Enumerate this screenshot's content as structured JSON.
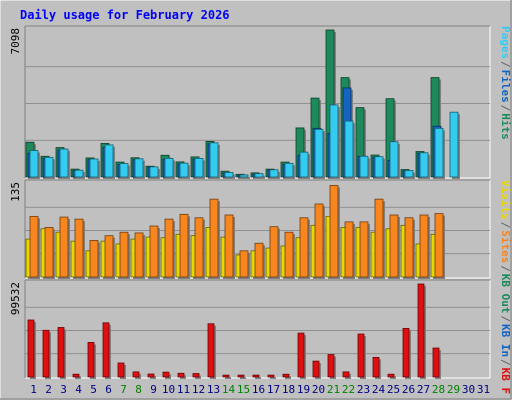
{
  "chart_data": {
    "type": "bar",
    "title": "Daily usage for February 2026",
    "days": [
      "1",
      "2",
      "3",
      "4",
      "5",
      "6",
      "7",
      "8",
      "9",
      "10",
      "11",
      "12",
      "13",
      "14",
      "15",
      "16",
      "17",
      "18",
      "19",
      "20",
      "21",
      "22",
      "23",
      "24",
      "25",
      "26",
      "27",
      "28",
      "29",
      "30",
      "31"
    ],
    "weekend_days": [
      7,
      8,
      14,
      15,
      21,
      22,
      28,
      29
    ],
    "panels": [
      {
        "id": "top",
        "max_label": "7098",
        "max": 7098,
        "series": [
          {
            "name": "Hits",
            "color": "#1c8a5a",
            "values": [
              1680,
              1000,
              1420,
              380,
              920,
              1620,
              720,
              930,
              520,
              1050,
              730,
              970,
              1720,
              280,
              130,
              200,
              380,
              720,
              2370,
              3810,
              7098,
              4800,
              3350,
              1060,
              3780,
              360,
              1230,
              4800,
              0,
              0,
              0
            ]
          },
          {
            "name": "Files",
            "color": "#1565c0",
            "values": [
              1150,
              900,
              1300,
              310,
              840,
              1430,
              600,
              840,
              480,
              860,
              640,
              870,
              1600,
              200,
              90,
              140,
              330,
              610,
              1050,
              2350,
              2100,
              4300,
              1000,
              960,
              800,
              290,
              1150,
              2450,
              0,
              0,
              0
            ]
          },
          {
            "name": "Pages",
            "color": "#33ccf0",
            "values": [
              1280,
              950,
              1350,
              330,
              870,
              1550,
              650,
              880,
              490,
              900,
              670,
              900,
              1650,
              220,
              100,
              160,
              350,
              660,
              1200,
              2300,
              3480,
              2700,
              1000,
              980,
              1700,
              310,
              1170,
              2350,
              3130,
              0,
              0
            ]
          }
        ],
        "legend": [
          "Pages",
          "/",
          "Files",
          "/",
          "Hits"
        ],
        "legend_colors": [
          "#33ccf0",
          "#666666",
          "#1565c0",
          "#666666",
          "#1c8a5a"
        ]
      },
      {
        "id": "middle",
        "max_label": "135",
        "max": 135,
        "series": [
          {
            "name": "Visits",
            "color": "#e8d800",
            "values": [
              55,
              70,
              65,
              52,
              38,
              52,
              48,
              55,
              58,
              57,
              62,
              60,
              72,
              58,
              32,
              38,
              42,
              45,
              57,
              75,
              88,
              72,
              72,
              65,
              70,
              75,
              48,
              62,
              0,
              0,
              0
            ]
          },
          {
            "name": "Sites",
            "color": "#f7861e",
            "values": [
              88,
              72,
              87,
              84,
              53,
              60,
              65,
              64,
              74,
              84,
              91,
              86,
              113,
              90,
              38,
              49,
              73,
              65,
              86,
              106,
              133,
              80,
              80,
              113,
              90,
              86,
              90,
              92,
              0,
              0,
              0
            ]
          }
        ],
        "legend": [
          "Visits",
          "/",
          "Sites",
          "/",
          "KB Out",
          "/",
          "KB In",
          "/",
          "KB F"
        ],
        "legend_colors": [
          "#e8d800",
          "#666666",
          "#f7861e",
          "#666666",
          "#1c8a5a",
          "#666666",
          "#1565c0",
          "#666666",
          "#e01010"
        ]
      },
      {
        "id": "bottom",
        "max_label": "99532",
        "max": 99532,
        "series": [
          {
            "name": "KB F",
            "color": "#e01010",
            "values": [
              61000,
              50000,
              53000,
              3000,
              37000,
              58000,
              15000,
              5500,
              3200,
              5200,
              4000,
              3700,
              57000,
              2000,
              2000,
              2000,
              2000,
              3000,
              47000,
              17000,
              24000,
              5500,
              46000,
              21000,
              3000,
              52000,
              99532,
              31000,
              0,
              0,
              0
            ]
          }
        ]
      }
    ],
    "grid": true,
    "legend_position": "right-vertical"
  },
  "colors": {
    "background": "#c0c0c0",
    "title": "#0000ff",
    "axis_label": "#000000",
    "day_weekday": "#000080",
    "day_weekend": "#008000"
  }
}
